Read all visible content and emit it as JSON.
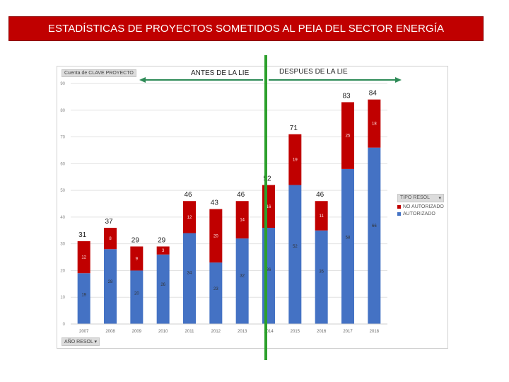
{
  "header": {
    "title": "ESTADÍSTICAS DE PROYECTOS SOMETIDOS AL PEIA DEL SECTOR ENERGÍA"
  },
  "pivot": {
    "value_field": "Cuenta de CLAVE PROYECTO",
    "axis_field": "AÑO RESOL",
    "legend_field": "TIPO RESOL",
    "dropdown_icon": "chevron-down-icon"
  },
  "annotations": {
    "before": "ANTES DE LA LIE",
    "after": "DESPUES DE LA LIE"
  },
  "colors": {
    "autorizado": "#4472c4",
    "no_autorizado": "#c00000",
    "divider": "#2ca02c",
    "arrow": "#2e8b57",
    "title_bg": "#c00000"
  },
  "chart_data": {
    "type": "bar",
    "stacked": true,
    "title": "",
    "xlabel": "",
    "ylabel": "",
    "categories": [
      "2007",
      "2008",
      "2009",
      "2010",
      "2011",
      "2012",
      "2013",
      "2014",
      "2015",
      "2016",
      "2017",
      "2018"
    ],
    "series": [
      {
        "name": "AUTORIZADO",
        "values": [
          19,
          28,
          20,
          26,
          34,
          23,
          32,
          36,
          52,
          35,
          58,
          66
        ]
      },
      {
        "name": "NO AUTORIZADO",
        "values": [
          12,
          8,
          9,
          3,
          12,
          20,
          14,
          16,
          19,
          11,
          25,
          18
        ]
      }
    ],
    "series_labels": [
      [
        "19",
        "28",
        "20",
        "26",
        "34",
        "23",
        "32",
        "36",
        "52",
        "35",
        "58",
        "66"
      ],
      [
        "12",
        "8",
        "9",
        "3",
        "12",
        "20",
        "14",
        "16",
        "19",
        "11",
        "25",
        "18"
      ]
    ],
    "totals": [
      31,
      37,
      29,
      29,
      46,
      43,
      46,
      52,
      71,
      46,
      83,
      84
    ],
    "ylim": [
      0,
      90
    ],
    "yticks": [
      0,
      10,
      20,
      30,
      40,
      50,
      60,
      70,
      80,
      90
    ],
    "grid": true,
    "legend": "right"
  }
}
